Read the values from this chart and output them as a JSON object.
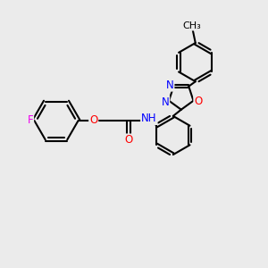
{
  "background_color": "#ebebeb",
  "bond_color": "#000000",
  "bond_width": 1.5,
  "atom_colors": {
    "F": "#ee00ee",
    "O_red": "#ff0000",
    "O_blue": "#ff0000",
    "N_blue": "#0000ff",
    "C": "#000000"
  },
  "font_size": 8.5,
  "fig_width": 3.0,
  "fig_height": 3.0,
  "dpi": 100,
  "xlim": [
    0,
    10
  ],
  "ylim": [
    0,
    10
  ]
}
